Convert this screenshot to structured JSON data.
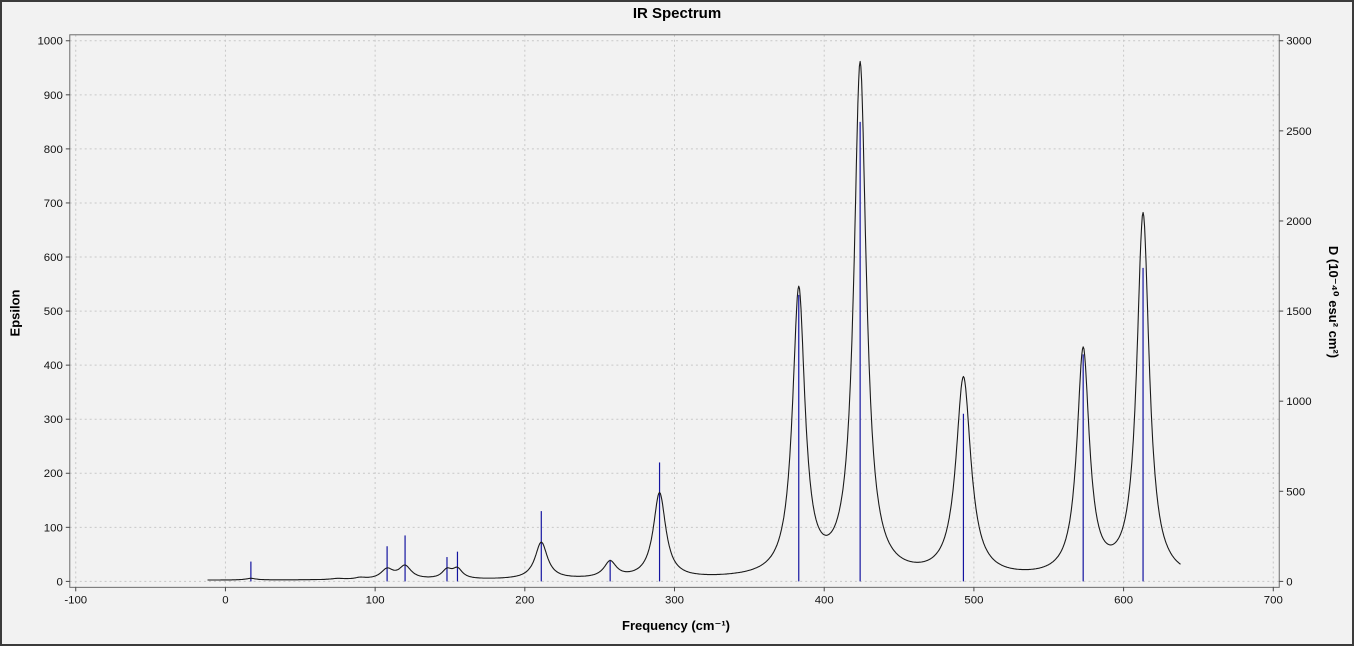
{
  "chart_data": {
    "type": "line",
    "title": "IR Spectrum",
    "xlabel": "Frequency (cm⁻¹)",
    "ylabel": "Epsilon",
    "y2label": "D (10⁻⁴⁰ esu² cm²)",
    "x_range": [
      -100,
      700
    ],
    "y_range": [
      0,
      1000
    ],
    "y2_range": [
      0,
      3000
    ],
    "x_ticks": [
      -100,
      0,
      100,
      200,
      300,
      400,
      500,
      600,
      700
    ],
    "y_ticks": [
      0,
      100,
      200,
      300,
      400,
      500,
      600,
      700,
      800,
      900,
      1000
    ],
    "y2_ticks": [
      0,
      500,
      1000,
      1500,
      2000,
      2500,
      3000
    ],
    "grid": true,
    "legend": "none",
    "curve_color": "#1a1a1a",
    "stick_color": "#1414a0",
    "grid_color": "#c8c8c8",
    "frame_color": "#6b6b6b",
    "background_color": "#f2f2f2",
    "baseline_epsilon": 2,
    "curve_range": [
      -12,
      638
    ],
    "peaks": [
      {
        "frequency": 17,
        "epsilon": 3,
        "hwhm": 4,
        "D": 110
      },
      {
        "frequency": 75,
        "epsilon": 2,
        "hwhm": 5,
        "D": 0
      },
      {
        "frequency": 90,
        "epsilon": 3,
        "hwhm": 4,
        "D": 0
      },
      {
        "frequency": 108,
        "epsilon": 18,
        "hwhm": 5,
        "D": 195
      },
      {
        "frequency": 120,
        "epsilon": 24,
        "hwhm": 5,
        "D": 255
      },
      {
        "frequency": 148,
        "epsilon": 16,
        "hwhm": 4,
        "D": 135
      },
      {
        "frequency": 155,
        "epsilon": 18,
        "hwhm": 4,
        "D": 165
      },
      {
        "frequency": 211,
        "epsilon": 68,
        "hwhm": 5,
        "D": 390
      },
      {
        "frequency": 257,
        "epsilon": 30,
        "hwhm": 5,
        "D": 120
      },
      {
        "frequency": 290,
        "epsilon": 158,
        "hwhm": 5,
        "D": 660
      },
      {
        "frequency": 383,
        "epsilon": 528,
        "hwhm": 5,
        "D": 1590
      },
      {
        "frequency": 424,
        "epsilon": 948,
        "hwhm": 5,
        "D": 2550
      },
      {
        "frequency": 493,
        "epsilon": 368,
        "hwhm": 6,
        "D": 930
      },
      {
        "frequency": 573,
        "epsilon": 418,
        "hwhm": 5,
        "D": 1260
      },
      {
        "frequency": 613,
        "epsilon": 672,
        "hwhm": 5,
        "D": 1740
      }
    ]
  }
}
